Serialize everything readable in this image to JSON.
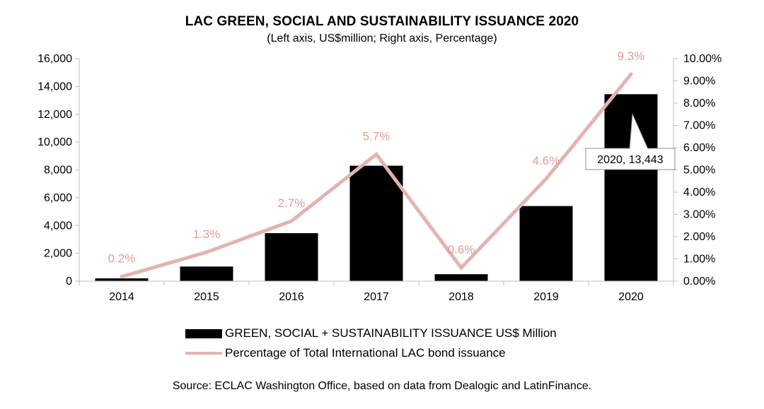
{
  "title": "LAC GREEN, SOCIAL AND SUSTAINABILITY ISSUANCE 2020",
  "subtitle": "(Left axis, US$million; Right axis, Percentage)",
  "source": "Source: ECLAC Washington Office, based on data from Dealogic and LatinFinance.",
  "colors": {
    "bar": "#000000",
    "line": "#e3b3b0",
    "line_label": "#e39a94",
    "axis": "#bfbfbf"
  },
  "chart_data": {
    "type": "bar+line",
    "categories": [
      "2014",
      "2015",
      "2016",
      "2017",
      "2018",
      "2019",
      "2020"
    ],
    "series": [
      {
        "name": "GREEN, SOCIAL + SUSTAINABILITY ISSUANCE US$ Million",
        "type": "bar",
        "axis": "left",
        "values": [
          200,
          1050,
          3450,
          8300,
          500,
          5400,
          13443
        ]
      },
      {
        "name": "Percentage of Total International LAC bond issuance",
        "type": "line",
        "axis": "right",
        "values": [
          0.2,
          1.3,
          2.7,
          5.7,
          0.6,
          4.6,
          9.3
        ],
        "labels": [
          "0.2%",
          "1.3%",
          "2.7%",
          "5.7%",
          "0.6%",
          "4.6%",
          "9.3%"
        ]
      }
    ],
    "left_axis": {
      "min": 0,
      "max": 16000,
      "ticks": [
        "0",
        "2,000",
        "4,000",
        "6,000",
        "8,000",
        "10,000",
        "12,000",
        "14,000",
        "16,000"
      ]
    },
    "right_axis": {
      "min": 0,
      "max": 10,
      "ticks": [
        "0.00%",
        "1.00%",
        "2.00%",
        "3.00%",
        "4.00%",
        "5.00%",
        "6.00%",
        "7.00%",
        "8.00%",
        "9.00%",
        "10.00%"
      ]
    },
    "callout": {
      "category": "2020",
      "text": "2020, 13,443"
    },
    "legend": {
      "bar_label": "GREEN, SOCIAL + SUSTAINABILITY ISSUANCE US$ Million",
      "line_label": "Percentage of Total International LAC bond issuance",
      "position": "bottom"
    }
  }
}
